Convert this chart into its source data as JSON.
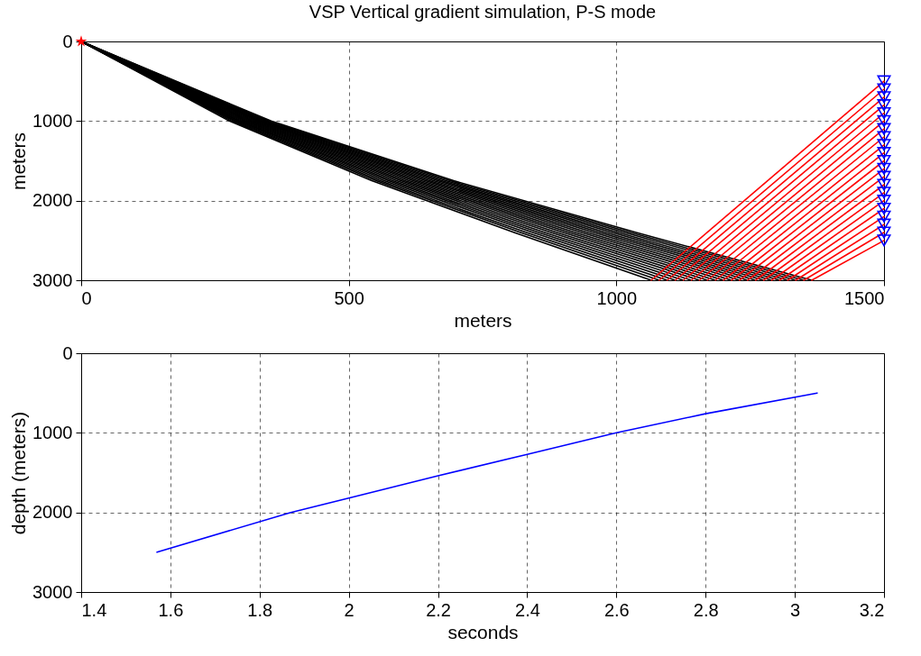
{
  "chart_data": [
    {
      "type": "line",
      "title": "VSP Vertical gradient simulation, P-S mode",
      "xlabel": "meters",
      "ylabel": "meters",
      "xlim": [
        0,
        1500
      ],
      "xticks": [
        0,
        500,
        1000,
        1500
      ],
      "ylim": [
        3000,
        0
      ],
      "yticks": [
        0,
        1000,
        2000,
        3000
      ],
      "grid": true,
      "line_style": "solid",
      "series": [
        {
          "color": "#000000",
          "x": [
            0,
            355,
            696,
            1037,
            1365
          ],
          "values": [
            0,
            1000,
            1750,
            2400,
            3000
          ]
        },
        {
          "color": "#000000",
          "x": [
            0,
            351,
            689,
            1026,
            1350
          ],
          "values": [
            0,
            1000,
            1750,
            2400,
            3000
          ]
        },
        {
          "color": "#000000",
          "x": [
            0,
            347,
            681,
            1015,
            1335
          ],
          "values": [
            0,
            1000,
            1750,
            2400,
            3000
          ]
        },
        {
          "color": "#000000",
          "x": [
            0,
            343,
            673,
            1003,
            1320
          ],
          "values": [
            0,
            1000,
            1750,
            2400,
            3000
          ]
        },
        {
          "color": "#000000",
          "x": [
            0,
            339,
            666,
            992,
            1305
          ],
          "values": [
            0,
            1000,
            1750,
            2400,
            3000
          ]
        },
        {
          "color": "#000000",
          "x": [
            0,
            335,
            658,
            980,
            1290
          ],
          "values": [
            0,
            1000,
            1750,
            2400,
            3000
          ]
        },
        {
          "color": "#000000",
          "x": [
            0,
            332,
            650,
            969,
            1275
          ],
          "values": [
            0,
            1000,
            1750,
            2400,
            3000
          ]
        },
        {
          "color": "#000000",
          "x": [
            0,
            328,
            643,
            958,
            1260
          ],
          "values": [
            0,
            1000,
            1750,
            2400,
            3000
          ]
        },
        {
          "color": "#000000",
          "x": [
            0,
            324,
            635,
            946,
            1245
          ],
          "values": [
            0,
            1000,
            1750,
            2400,
            3000
          ]
        },
        {
          "color": "#000000",
          "x": [
            0,
            320,
            627,
            935,
            1230
          ],
          "values": [
            0,
            1000,
            1750,
            2400,
            3000
          ]
        },
        {
          "color": "#000000",
          "x": [
            0,
            316,
            620,
            923,
            1215
          ],
          "values": [
            0,
            1000,
            1750,
            2400,
            3000
          ]
        },
        {
          "color": "#000000",
          "x": [
            0,
            312,
            612,
            912,
            1200
          ],
          "values": [
            0,
            1000,
            1750,
            2400,
            3000
          ]
        },
        {
          "color": "#000000",
          "x": [
            0,
            308,
            604,
            901,
            1185
          ],
          "values": [
            0,
            1000,
            1750,
            2400,
            3000
          ]
        },
        {
          "color": "#000000",
          "x": [
            0,
            304,
            597,
            889,
            1170
          ],
          "values": [
            0,
            1000,
            1750,
            2400,
            3000
          ]
        },
        {
          "color": "#000000",
          "x": [
            0,
            300,
            589,
            878,
            1155
          ],
          "values": [
            0,
            1000,
            1750,
            2400,
            3000
          ]
        },
        {
          "color": "#000000",
          "x": [
            0,
            296,
            581,
            866,
            1140
          ],
          "values": [
            0,
            1000,
            1750,
            2400,
            3000
          ]
        },
        {
          "color": "#000000",
          "x": [
            0,
            293,
            574,
            855,
            1125
          ],
          "values": [
            0,
            1000,
            1750,
            2400,
            3000
          ]
        },
        {
          "color": "#000000",
          "x": [
            0,
            289,
            566,
            844,
            1110
          ],
          "values": [
            0,
            1000,
            1750,
            2400,
            3000
          ]
        },
        {
          "color": "#000000",
          "x": [
            0,
            285,
            558,
            832,
            1095
          ],
          "values": [
            0,
            1000,
            1750,
            2400,
            3000
          ]
        },
        {
          "color": "#000000",
          "x": [
            0,
            281,
            551,
            821,
            1080
          ],
          "values": [
            0,
            1000,
            1750,
            2400,
            3000
          ]
        },
        {
          "color": "#000000",
          "x": [
            0,
            277,
            543,
            809,
            1065
          ],
          "values": [
            0,
            1000,
            1750,
            2400,
            3000
          ]
        },
        {
          "color": "#ff0000",
          "x": [
            1065,
            1500
          ],
          "values": [
            3000,
            500
          ]
        },
        {
          "color": "#ff0000",
          "x": [
            1080,
            1500
          ],
          "values": [
            3000,
            600
          ]
        },
        {
          "color": "#ff0000",
          "x": [
            1095,
            1500
          ],
          "values": [
            3000,
            700
          ]
        },
        {
          "color": "#ff0000",
          "x": [
            1110,
            1500
          ],
          "values": [
            3000,
            800
          ]
        },
        {
          "color": "#ff0000",
          "x": [
            1125,
            1500
          ],
          "values": [
            3000,
            900
          ]
        },
        {
          "color": "#ff0000",
          "x": [
            1140,
            1500
          ],
          "values": [
            3000,
            1000
          ]
        },
        {
          "color": "#ff0000",
          "x": [
            1155,
            1500
          ],
          "values": [
            3000,
            1100
          ]
        },
        {
          "color": "#ff0000",
          "x": [
            1170,
            1500
          ],
          "values": [
            3000,
            1200
          ]
        },
        {
          "color": "#ff0000",
          "x": [
            1185,
            1500
          ],
          "values": [
            3000,
            1300
          ]
        },
        {
          "color": "#ff0000",
          "x": [
            1200,
            1500
          ],
          "values": [
            3000,
            1400
          ]
        },
        {
          "color": "#ff0000",
          "x": [
            1215,
            1500
          ],
          "values": [
            3000,
            1500
          ]
        },
        {
          "color": "#ff0000",
          "x": [
            1230,
            1500
          ],
          "values": [
            3000,
            1600
          ]
        },
        {
          "color": "#ff0000",
          "x": [
            1245,
            1500
          ],
          "values": [
            3000,
            1700
          ]
        },
        {
          "color": "#ff0000",
          "x": [
            1260,
            1500
          ],
          "values": [
            3000,
            1800
          ]
        },
        {
          "color": "#ff0000",
          "x": [
            1275,
            1500
          ],
          "values": [
            3000,
            1900
          ]
        },
        {
          "color": "#ff0000",
          "x": [
            1290,
            1500
          ],
          "values": [
            3000,
            2000
          ]
        },
        {
          "color": "#ff0000",
          "x": [
            1305,
            1500
          ],
          "values": [
            3000,
            2100
          ]
        },
        {
          "color": "#ff0000",
          "x": [
            1320,
            1500
          ],
          "values": [
            3000,
            2200
          ]
        },
        {
          "color": "#ff0000",
          "x": [
            1335,
            1500
          ],
          "values": [
            3000,
            2300
          ]
        },
        {
          "color": "#ff0000",
          "x": [
            1350,
            1500
          ],
          "values": [
            3000,
            2400
          ]
        },
        {
          "color": "#ff0000",
          "x": [
            1365,
            1500
          ],
          "values": [
            3000,
            2500
          ]
        },
        {
          "type": "scatter",
          "marker": "triangle",
          "color": "#0000ff",
          "x": [
            1500,
            1500,
            1500,
            1500,
            1500,
            1500,
            1500,
            1500,
            1500,
            1500,
            1500,
            1500,
            1500,
            1500,
            1500,
            1500,
            1500,
            1500,
            1500,
            1500,
            1500
          ],
          "values": [
            500,
            600,
            700,
            800,
            900,
            1000,
            1100,
            1200,
            1300,
            1400,
            1500,
            1600,
            1700,
            1800,
            1900,
            2000,
            2100,
            2200,
            2300,
            2400,
            2500
          ]
        },
        {
          "type": "scatter",
          "marker": "star",
          "color": "#ff0000",
          "x": [
            0
          ],
          "values": [
            0
          ]
        }
      ]
    },
    {
      "type": "line",
      "xlabel": "seconds",
      "ylabel": "depth (meters)",
      "xlim": [
        1.4,
        3.2
      ],
      "xticks": [
        1.4,
        1.6,
        1.8,
        2,
        2.2,
        2.4,
        2.6,
        2.8,
        3,
        3.2
      ],
      "ylim": [
        3000,
        0
      ],
      "yticks": [
        0,
        1000,
        2000,
        3000
      ],
      "grid": true,
      "line_style": "solid",
      "series": [
        {
          "color": "#0000ff",
          "x": [
            1.57,
            1.87,
            2.0,
            2.2,
            2.4,
            2.6,
            2.8,
            3.05
          ],
          "values": [
            2500,
            2000,
            1820,
            1540,
            1270,
            1000,
            760,
            500
          ]
        }
      ]
    }
  ]
}
